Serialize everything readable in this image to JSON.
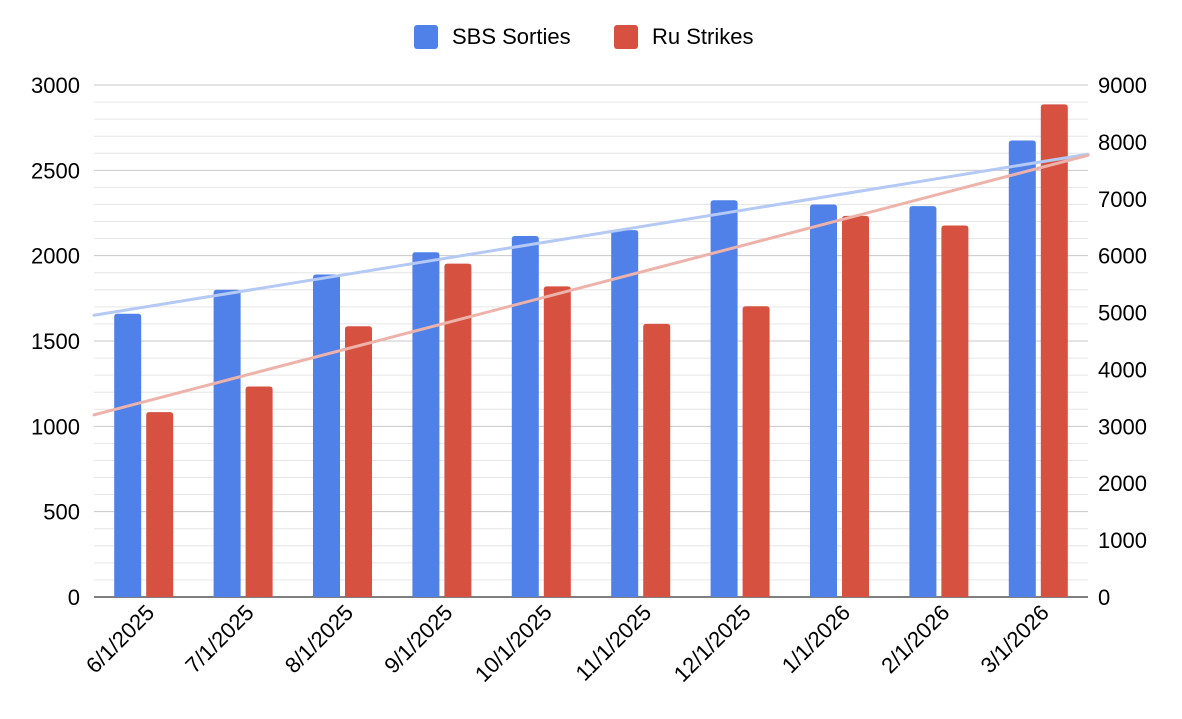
{
  "chart_data": {
    "type": "bar",
    "categories": [
      "6/1/2025",
      "7/1/2025",
      "8/1/2025",
      "9/1/2025",
      "10/1/2025",
      "11/1/2025",
      "12/1/2025",
      "1/1/2026",
      "2/1/2026",
      "3/1/2026"
    ],
    "series": [
      {
        "name": "SBS Sorties",
        "axis": "left",
        "color": "#4f81e8",
        "trendline_color": "#b4c9f4",
        "values": [
          1660,
          1800,
          1890,
          2020,
          2115,
          2150,
          2325,
          2300,
          2290,
          2675
        ]
      },
      {
        "name": "Ru Strikes",
        "axis": "right",
        "color": "#d65140",
        "trendline_color": "#edb3ab",
        "values": [
          3250,
          3700,
          4760,
          5860,
          5460,
          4800,
          5110,
          6700,
          6530,
          8660
        ]
      }
    ],
    "left_axis": {
      "ylim": [
        0,
        3000
      ],
      "ticks": [
        0,
        500,
        1000,
        1500,
        2000,
        2500,
        3000
      ]
    },
    "right_axis": {
      "ylim": [
        0,
        9000
      ],
      "ticks": [
        0,
        1000,
        2000,
        3000,
        4000,
        5000,
        6000,
        7000,
        8000,
        9000
      ]
    },
    "trendlines": "linear",
    "grid": true,
    "legend_position": "top-center",
    "title": "",
    "xlabel": "",
    "ylabel": ""
  }
}
